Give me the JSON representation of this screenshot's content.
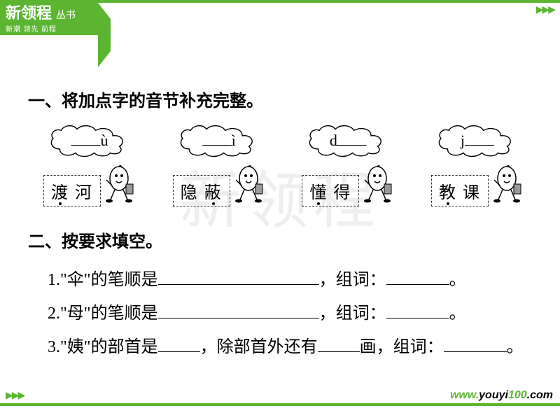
{
  "brand": {
    "main": "新领程",
    "suffix": "丛书",
    "sub": "新潮 领先 前程"
  },
  "watermark": "新领程",
  "section1": {
    "title": "一、将加点字的音节补充完整。",
    "items": [
      {
        "prefix_blank": true,
        "suffix": "ù",
        "word": "渡 河",
        "dot_index": 0
      },
      {
        "prefix_blank": true,
        "suffix": "ì",
        "word": "隐 蔽",
        "dot_index": 1
      },
      {
        "prefix": "d",
        "suffix_blank": true,
        "word": "懂 得",
        "dot_index": 0
      },
      {
        "prefix": "j",
        "suffix_blank": true,
        "word": "教 课",
        "dot_index": 0
      }
    ]
  },
  "section2": {
    "title": "二、按要求填空。",
    "lines": {
      "l1a": "1.\"伞\"的笔顺是",
      "l1b": "，组词：",
      "l1c": "。",
      "l2a": "2.\"母\"的笔顺是",
      "l2b": "，组词：",
      "l2c": "。",
      "l3a": "3.\"姨\"的部首是",
      "l3b": "，除部首外还有",
      "l3c": "画，组词：",
      "l3d": "。"
    }
  },
  "url": {
    "w1": "www.",
    "w2": "youyi",
    "w3": "100",
    "w4": ".com"
  },
  "colors": {
    "accent": "#5cb531"
  },
  "blank_widths": {
    "long": 230,
    "med": 90,
    "short": 60
  }
}
